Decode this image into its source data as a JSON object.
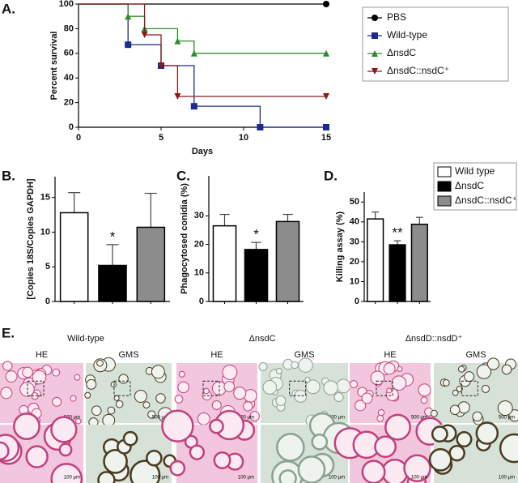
{
  "figure": {
    "panel_labels": [
      "A.",
      "B.",
      "C.",
      "D.",
      "E."
    ]
  },
  "chart_data": [
    {
      "type": "line",
      "step": true,
      "x": [
        0,
        3,
        4,
        5,
        6,
        7,
        11,
        15
      ],
      "xlim": [
        0,
        15
      ],
      "xticks": [
        0,
        5,
        10,
        15
      ],
      "ylim": [
        0,
        100
      ],
      "yticks": [
        0,
        20,
        40,
        60,
        80,
        100
      ],
      "xlabel": "Days",
      "ylabel": "Percent survival",
      "series": [
        {
          "name": "PBS",
          "color": "#000000",
          "marker": "circle",
          "values": [
            100,
            100,
            100,
            100,
            100,
            100,
            100,
            100
          ]
        },
        {
          "name": "Wild-type",
          "color": "#1d2a8f",
          "marker": "square",
          "values": [
            100,
            67,
            67,
            50,
            50,
            17,
            0,
            0
          ]
        },
        {
          "name": "ΔnsdC",
          "color": "#2e8b2e",
          "marker": "triangle-up",
          "values": [
            100,
            90,
            80,
            80,
            70,
            60,
            60,
            60
          ]
        },
        {
          "name": "ΔnsdC::nsdC⁺",
          "color": "#8b1a1a",
          "marker": "triangle-down",
          "values": [
            100,
            100,
            75,
            50,
            25,
            25,
            25,
            25
          ]
        }
      ]
    },
    {
      "type": "bar",
      "categories": [
        null,
        null,
        null
      ],
      "values": [
        12.8,
        5.2,
        10.7
      ],
      "errors": [
        2.9,
        3.0,
        4.9
      ],
      "colors": [
        "#ffffff",
        "#000000",
        "#8c8c8c"
      ],
      "ylim": [
        0,
        18
      ],
      "yticks": [
        0,
        5,
        10,
        15
      ],
      "ylabel": "[Copies 18S/Copies GAPDH]",
      "annotations": [
        null,
        "*",
        null
      ]
    },
    {
      "type": "bar",
      "categories": [
        null,
        null,
        null
      ],
      "values": [
        26.5,
        18.2,
        28.0
      ],
      "errors": [
        4.0,
        2.5,
        2.5
      ],
      "colors": [
        "#ffffff",
        "#000000",
        "#8c8c8c"
      ],
      "ylim": [
        0,
        44
      ],
      "yticks": [
        0,
        10,
        20,
        30
      ],
      "ylabel": "Phagocytosed conidia (%)",
      "annotations": [
        null,
        "*",
        null
      ]
    },
    {
      "type": "bar",
      "categories": [
        null,
        null,
        null
      ],
      "values": [
        41.5,
        28.5,
        38.8
      ],
      "errors": [
        3.5,
        2.0,
        3.5
      ],
      "colors": [
        "#ffffff",
        "#000000",
        "#8c8c8c"
      ],
      "ylim": [
        0,
        55
      ],
      "yticks": [
        0,
        10,
        20,
        30,
        40,
        50
      ],
      "ylabel": "Killing assay (%)",
      "annotations": [
        null,
        "**",
        null
      ],
      "legend": [
        "Wild type",
        "ΔnsdC",
        "ΔnsdC::nsdC⁺"
      ]
    }
  ],
  "histology": {
    "groups": [
      {
        "title": "Wild-type",
        "stains": [
          "HE",
          "GMS"
        ]
      },
      {
        "title": "ΔnsdC",
        "stains": [
          "HE",
          "GMS"
        ]
      },
      {
        "title": "ΔnsdD::nsdD⁺",
        "stains": [
          "HE",
          "GMS"
        ]
      }
    ],
    "scale_bars": [
      "500 µm",
      "100 µm"
    ]
  }
}
